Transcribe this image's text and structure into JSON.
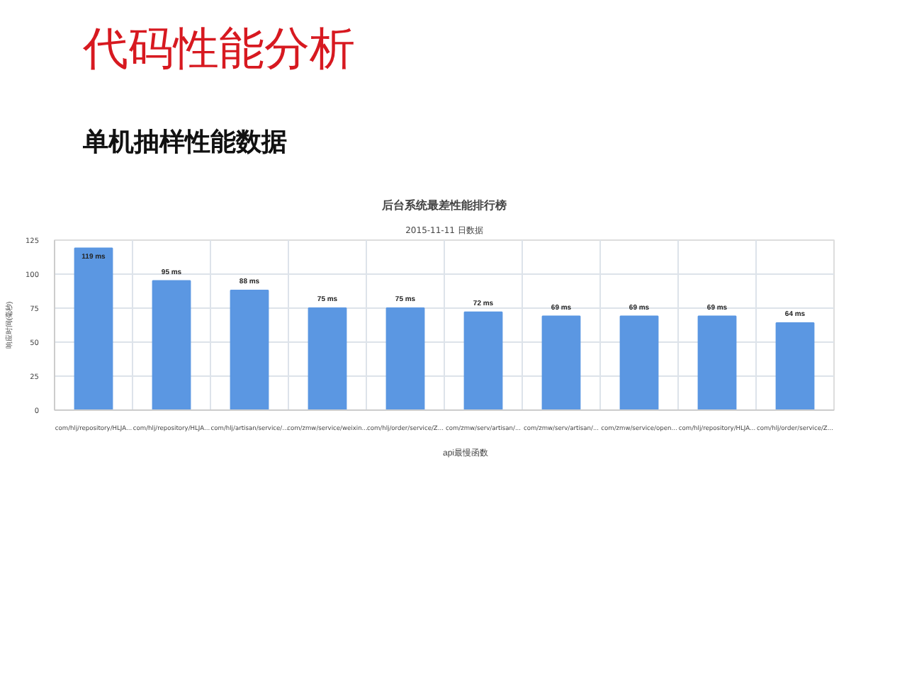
{
  "chart_data": {
    "type": "bar",
    "title": "后台系统最差性能排行榜",
    "subtitle": "2015-11-11 日数据",
    "ylabel": "响应时间(毫秒)",
    "annotations": [
      "代码性能分析",
      "单机抽样性能数据"
    ],
    "categories": [
      "com/hlj/repository/HLJA...",
      "com/hlj/repository/HLJA...",
      "com/hlj/artisan/service/...",
      "com/zmw/service/weixin...",
      "com/hlj/order/service/Z...",
      "com/zmw/serv/artisan/...",
      "com/zmw/serv/artisan/...",
      "com/zmw/service/open...",
      "com/hlj/repository/HLJA...",
      "com/hlj/order/service/Z..."
    ],
    "series": [
      {
        "name": "api最慢函数",
        "color": "#5b97e2",
        "values": [
          119,
          95,
          88,
          75,
          75,
          72,
          69,
          69,
          69,
          64
        ],
        "value_labels": [
          "119 ms",
          "95 ms",
          "88 ms",
          "75 ms",
          "75 ms",
          "72 ms",
          "69 ms",
          "69 ms",
          "69 ms",
          "64 ms"
        ]
      }
    ],
    "ylim": [
      0,
      125
    ],
    "yticks": [
      0,
      25,
      50,
      75,
      100,
      125
    ],
    "grid": true,
    "legend": "bottom"
  }
}
